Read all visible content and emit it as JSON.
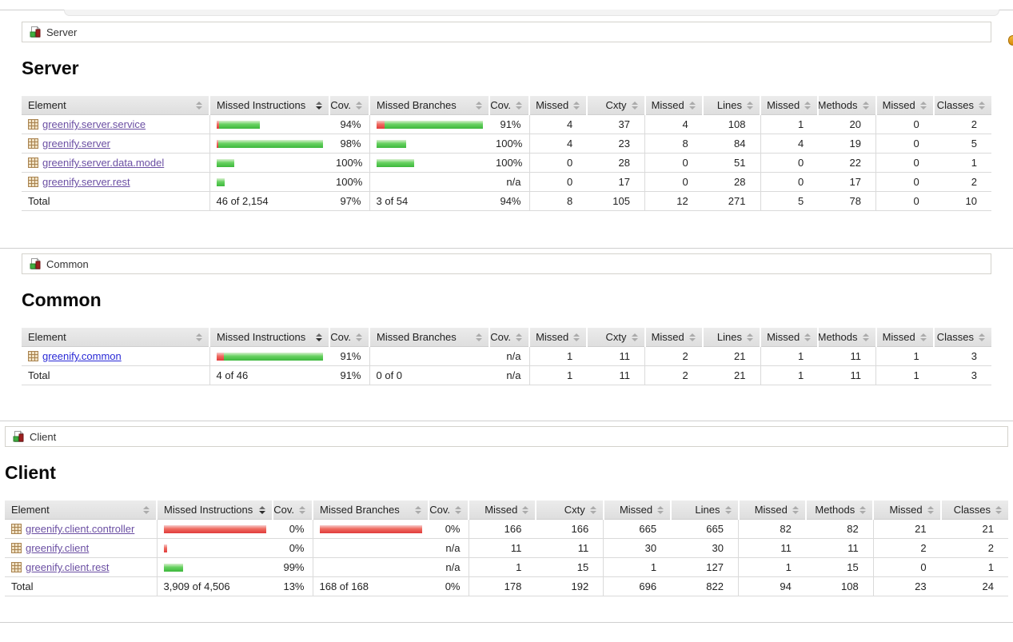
{
  "colors": {
    "covered_green": "#3cb83c",
    "missed_red": "#e03c3c",
    "link_visited": "#6b4fa3",
    "link_new": "#2929d6",
    "header_bg": "#e4e4e4"
  },
  "sections": [
    {
      "id": "server",
      "breadcrumb": "Server",
      "heading": "Server",
      "table": {
        "headers": [
          "Element",
          "Missed Instructions",
          "Cov.",
          "Missed Branches",
          "Cov.",
          "Missed",
          "Cxty",
          "Missed",
          "Lines",
          "Missed",
          "Methods",
          "Missed",
          "Classes"
        ],
        "rows": [
          {
            "name": "greenify.server.service",
            "variant": "v",
            "ibar": {
              "red": 3,
              "green": 51
            },
            "icov": "94%",
            "bbar": {
              "red": 11,
              "green": 130
            },
            "bcov": "91%",
            "n": [
              "4",
              "37",
              "4",
              "108",
              "1",
              "20",
              "0",
              "2"
            ]
          },
          {
            "name": "greenify.server",
            "variant": "v",
            "ibar": {
              "red": 3,
              "green": 136
            },
            "icov": "98%",
            "bbar": {
              "green": 37
            },
            "bcov": "100%",
            "n": [
              "4",
              "23",
              "8",
              "84",
              "4",
              "19",
              "0",
              "5"
            ]
          },
          {
            "name": "greenify.server.data.model",
            "variant": "v",
            "ibar": {
              "green": 22
            },
            "icov": "100%",
            "bbar": {
              "green": 47
            },
            "bcov": "100%",
            "n": [
              "0",
              "28",
              "0",
              "51",
              "0",
              "22",
              "0",
              "1"
            ]
          },
          {
            "name": "greenify.server.rest",
            "variant": "v",
            "ibar": {
              "green": 10
            },
            "icov": "100%",
            "bbar": {},
            "bcov": "n/a",
            "n": [
              "0",
              "17",
              "0",
              "28",
              "0",
              "17",
              "0",
              "2"
            ]
          }
        ],
        "total": {
          "label": "Total",
          "itext": "46 of 2,154",
          "icov": "97%",
          "btext": "3 of 54",
          "bcov": "94%",
          "n": [
            "8",
            "105",
            "12",
            "271",
            "5",
            "78",
            "0",
            "10"
          ]
        }
      }
    },
    {
      "id": "common",
      "breadcrumb": "Common",
      "heading": "Common",
      "table": {
        "headers": [
          "Element",
          "Missed Instructions",
          "Cov.",
          "Missed Branches",
          "Cov.",
          "Missed",
          "Cxty",
          "Missed",
          "Lines",
          "Missed",
          "Methods",
          "Missed",
          "Classes"
        ],
        "rows": [
          {
            "name": "greenify.common",
            "variant": "n",
            "ibar": {
              "red": 10,
              "green": 128
            },
            "icov": "91%",
            "bbar": {},
            "bcov": "n/a",
            "n": [
              "1",
              "11",
              "2",
              "21",
              "1",
              "11",
              "1",
              "3"
            ]
          }
        ],
        "total": {
          "label": "Total",
          "itext": "4 of 46",
          "icov": "91%",
          "btext": "0 of 0",
          "bcov": "n/a",
          "n": [
            "1",
            "11",
            "2",
            "21",
            "1",
            "11",
            "1",
            "3"
          ]
        }
      }
    },
    {
      "id": "client",
      "breadcrumb": "Client",
      "heading": "Client",
      "table": {
        "headers": [
          "Element",
          "Missed Instructions",
          "Cov.",
          "Missed Branches",
          "Cov.",
          "Missed",
          "Cxty",
          "Missed",
          "Lines",
          "Missed",
          "Methods",
          "Missed",
          "Classes"
        ],
        "rows": [
          {
            "name": "greenify.client.controller",
            "variant": "v",
            "ibar": {
              "red": 138
            },
            "icov": "0%",
            "bbar": {
              "red": 138
            },
            "bcov": "0%",
            "n": [
              "166",
              "166",
              "665",
              "665",
              "82",
              "82",
              "21",
              "21"
            ]
          },
          {
            "name": "greenify.client",
            "variant": "v",
            "ibar": {
              "red": 4
            },
            "icov": "0%",
            "bbar": {},
            "bcov": "n/a",
            "n": [
              "11",
              "11",
              "30",
              "30",
              "11",
              "11",
              "2",
              "2"
            ]
          },
          {
            "name": "greenify.client.rest",
            "variant": "v",
            "ibar": {
              "green": 24
            },
            "icov": "99%",
            "bbar": {},
            "bcov": "n/a",
            "n": [
              "1",
              "15",
              "1",
              "127",
              "1",
              "15",
              "0",
              "1"
            ]
          }
        ],
        "total": {
          "label": "Total",
          "itext": "3,909 of 4,506",
          "icov": "13%",
          "btext": "168 of 168",
          "bcov": "0%",
          "n": [
            "178",
            "192",
            "696",
            "822",
            "94",
            "108",
            "23",
            "24"
          ]
        }
      }
    }
  ]
}
